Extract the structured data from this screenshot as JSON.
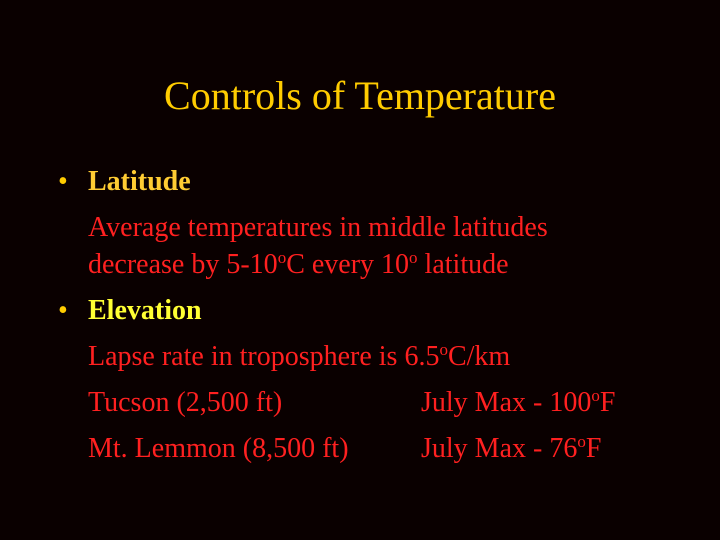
{
  "title": "Controls of Temperature",
  "bullets": [
    {
      "label": "Latitude",
      "lines": [
        [
          "Average temperatures in middle latitudes"
        ],
        [
          "decrease by 5-10",
          "o",
          "C every 10",
          "o",
          " latitude"
        ]
      ]
    },
    {
      "label": "Elevation",
      "lines": [
        [
          "Lapse rate in troposphere is 6.5",
          "o",
          "C/km"
        ]
      ]
    }
  ],
  "table": {
    "rows": [
      [
        [
          "Tucson (2,500 ft)"
        ],
        [
          "July Max - 100",
          "o",
          "F"
        ]
      ],
      [
        [
          "Mt. Lemmon (8,500 ft)"
        ],
        [
          "July Max - 76",
          "o",
          "F"
        ]
      ]
    ]
  }
}
